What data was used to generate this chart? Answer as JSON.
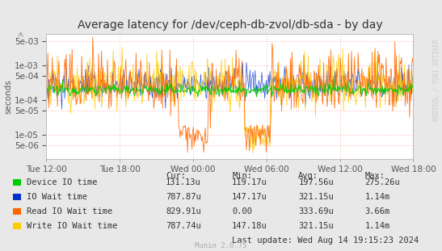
{
  "title": "Average latency for /dev/ceph-db-zvol/db-sda - by day",
  "ylabel": "seconds",
  "watermark": "RRDTOOL / TOBI OETIKER",
  "munin_version": "Munin 2.0.75",
  "last_update": "Last update: Wed Aug 14 19:15:23 2024",
  "x_tick_labels": [
    "Tue 12:00",
    "Tue 18:00",
    "Wed 00:00",
    "Wed 06:00",
    "Wed 12:00",
    "Wed 18:00"
  ],
  "y_ticks": [
    5e-06,
    1e-05,
    5e-05,
    0.0001,
    0.0005,
    0.001,
    0.005
  ],
  "background_color": "#e8e8e8",
  "plot_bg_color": "#ffffff",
  "grid_color": "#ffaaaa",
  "legend_items": [
    {
      "label": "Device IO time",
      "color": "#00cc00"
    },
    {
      "label": "IO Wait time",
      "color": "#0033cc"
    },
    {
      "label": "Read IO Wait time",
      "color": "#ff6600"
    },
    {
      "label": "Write IO Wait time",
      "color": "#ffcc00"
    }
  ],
  "legend_stats": [
    {
      "cur": "131.13u",
      "min": "119.17u",
      "avg": "197.56u",
      "max": "275.26u"
    },
    {
      "cur": "787.87u",
      "min": "147.17u",
      "avg": "321.15u",
      "max": "1.14m"
    },
    {
      "cur": "829.91u",
      "min": "0.00",
      "avg": "333.69u",
      "max": "3.66m"
    },
    {
      "cur": "787.74u",
      "min": "147.18u",
      "avg": "321.15u",
      "max": "1.14m"
    }
  ],
  "title_fontsize": 10,
  "axis_fontsize": 7.5,
  "legend_fontsize": 7.5,
  "n_points": 500
}
